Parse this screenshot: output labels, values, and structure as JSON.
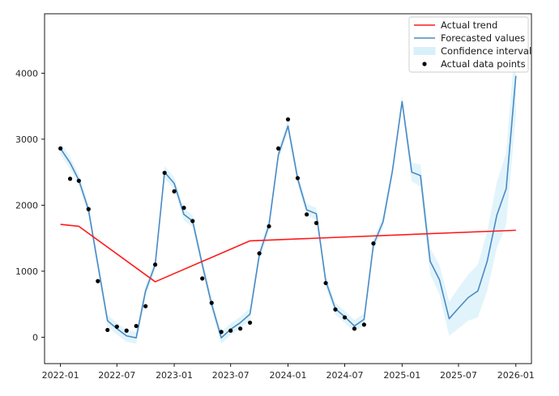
{
  "chart_data": {
    "type": "line",
    "title": "",
    "xlabel": "",
    "ylabel": "",
    "xlim": [
      "2021-11-11",
      "2026-02-20"
    ],
    "ylim": [
      -400,
      4900
    ],
    "grid": false,
    "legend_position": "top-right",
    "x_ticks": [
      "2022-01",
      "2022-07",
      "2023-01",
      "2023-07",
      "2024-01",
      "2024-07",
      "2025-01",
      "2025-07",
      "2026-01"
    ],
    "y_ticks": [
      0,
      1000,
      2000,
      3000,
      4000
    ],
    "colors": {
      "trend": "#ff1a1a",
      "forecast": "#4a8ac4",
      "confidence": "#d8f0f9",
      "points": "#000000"
    },
    "series": [
      {
        "name": "Actual trend",
        "kind": "line",
        "x": [
          "2022-01-01",
          "2022-03-01",
          "2022-11-01",
          "2023-09-01",
          "2026-01-01"
        ],
        "y": [
          1710,
          1680,
          840,
          1460,
          1620
        ]
      },
      {
        "name": "Forecasted values",
        "kind": "line",
        "x": [
          "2022-01-01",
          "2022-02-01",
          "2022-03-01",
          "2022-04-01",
          "2022-05-01",
          "2022-06-01",
          "2022-07-01",
          "2022-08-01",
          "2022-09-01",
          "2022-10-01",
          "2022-11-01",
          "2022-12-01",
          "2023-01-01",
          "2023-02-01",
          "2023-03-01",
          "2023-04-01",
          "2023-05-01",
          "2023-06-01",
          "2023-07-01",
          "2023-08-01",
          "2023-09-01",
          "2023-10-01",
          "2023-11-01",
          "2023-12-01",
          "2024-01-01",
          "2024-02-01",
          "2024-03-01",
          "2024-04-01",
          "2024-05-01",
          "2024-06-01",
          "2024-07-01",
          "2024-08-01",
          "2024-09-01",
          "2024-10-01",
          "2024-11-01",
          "2024-12-01",
          "2025-01-01",
          "2025-02-01",
          "2025-03-01",
          "2025-04-01",
          "2025-05-01",
          "2025-06-01",
          "2025-07-01",
          "2025-08-01",
          "2025-09-01",
          "2025-10-01",
          "2025-11-01",
          "2025-12-01",
          "2026-01-01"
        ],
        "y": [
          2860,
          2640,
          2380,
          1930,
          1100,
          250,
          130,
          20,
          -10,
          700,
          1100,
          2500,
          2330,
          1860,
          1760,
          1100,
          500,
          -10,
          120,
          220,
          350,
          1250,
          1700,
          2760,
          3200,
          2400,
          1930,
          1870,
          850,
          430,
          310,
          170,
          270,
          1400,
          1750,
          2520,
          3570,
          2500,
          2450,
          1150,
          870,
          280,
          440,
          600,
          700,
          1150,
          1850,
          2250,
          3960
        ]
      },
      {
        "name": "Confidence interval",
        "kind": "band",
        "x": [
          "2022-01-01",
          "2022-02-01",
          "2022-03-01",
          "2022-04-01",
          "2022-05-01",
          "2022-06-01",
          "2022-07-01",
          "2022-08-01",
          "2022-09-01",
          "2022-10-01",
          "2022-11-01",
          "2022-12-01",
          "2023-01-01",
          "2023-02-01",
          "2023-03-01",
          "2023-04-01",
          "2023-05-01",
          "2023-06-01",
          "2023-07-01",
          "2023-08-01",
          "2023-09-01",
          "2023-10-01",
          "2023-11-01",
          "2023-12-01",
          "2024-01-01",
          "2024-02-01",
          "2024-03-01",
          "2024-04-01",
          "2024-05-01",
          "2024-06-01",
          "2024-07-01",
          "2024-08-01",
          "2024-09-01",
          "2024-10-01",
          "2024-11-01",
          "2024-12-01",
          "2025-01-01",
          "2025-02-01",
          "2025-03-01",
          "2025-04-01",
          "2025-05-01",
          "2025-06-01",
          "2025-07-01",
          "2025-08-01",
          "2025-09-01",
          "2025-10-01",
          "2025-11-01",
          "2025-12-01",
          "2026-01-01"
        ],
        "lower": [
          2770,
          2550,
          2290,
          1840,
          1010,
          160,
          40,
          -70,
          -100,
          610,
          1010,
          2410,
          2240,
          1770,
          1670,
          1010,
          410,
          -100,
          30,
          130,
          260,
          1160,
          1610,
          2670,
          3110,
          2310,
          1840,
          1780,
          760,
          340,
          220,
          80,
          180,
          1310,
          1660,
          2430,
          3480,
          2360,
          2280,
          950,
          650,
          20,
          130,
          250,
          300,
          700,
          1350,
          1700,
          3350
        ],
        "upper": [
          2950,
          2730,
          2470,
          2020,
          1190,
          340,
          220,
          110,
          80,
          790,
          1190,
          2590,
          2420,
          1950,
          1850,
          1190,
          590,
          80,
          210,
          310,
          440,
          1340,
          1790,
          2850,
          3290,
          2490,
          2020,
          1960,
          940,
          520,
          400,
          260,
          360,
          1490,
          1840,
          2610,
          3660,
          2640,
          2620,
          1350,
          1090,
          540,
          750,
          950,
          1100,
          1600,
          2350,
          2800,
          4570
        ]
      },
      {
        "name": "Actual data points",
        "kind": "scatter",
        "x": [
          "2022-01-01",
          "2022-02-01",
          "2022-03-01",
          "2022-04-01",
          "2022-05-01",
          "2022-06-01",
          "2022-07-01",
          "2022-08-01",
          "2022-09-01",
          "2022-10-01",
          "2022-11-01",
          "2022-12-01",
          "2023-01-01",
          "2023-02-01",
          "2023-03-01",
          "2023-04-01",
          "2023-05-01",
          "2023-06-01",
          "2023-07-01",
          "2023-08-01",
          "2023-09-01",
          "2023-10-01",
          "2023-11-01",
          "2023-12-01",
          "2024-01-01",
          "2024-02-01",
          "2024-03-01",
          "2024-04-01",
          "2024-05-01",
          "2024-06-01",
          "2024-07-01",
          "2024-08-01",
          "2024-09-01",
          "2024-10-01"
        ],
        "y": [
          2860,
          2400,
          2370,
          1940,
          850,
          110,
          160,
          100,
          170,
          470,
          1100,
          2490,
          2210,
          1960,
          1760,
          890,
          520,
          80,
          100,
          130,
          220,
          1270,
          1680,
          2860,
          3300,
          2410,
          1860,
          1730,
          820,
          420,
          300,
          130,
          190,
          1420
        ]
      }
    ]
  }
}
